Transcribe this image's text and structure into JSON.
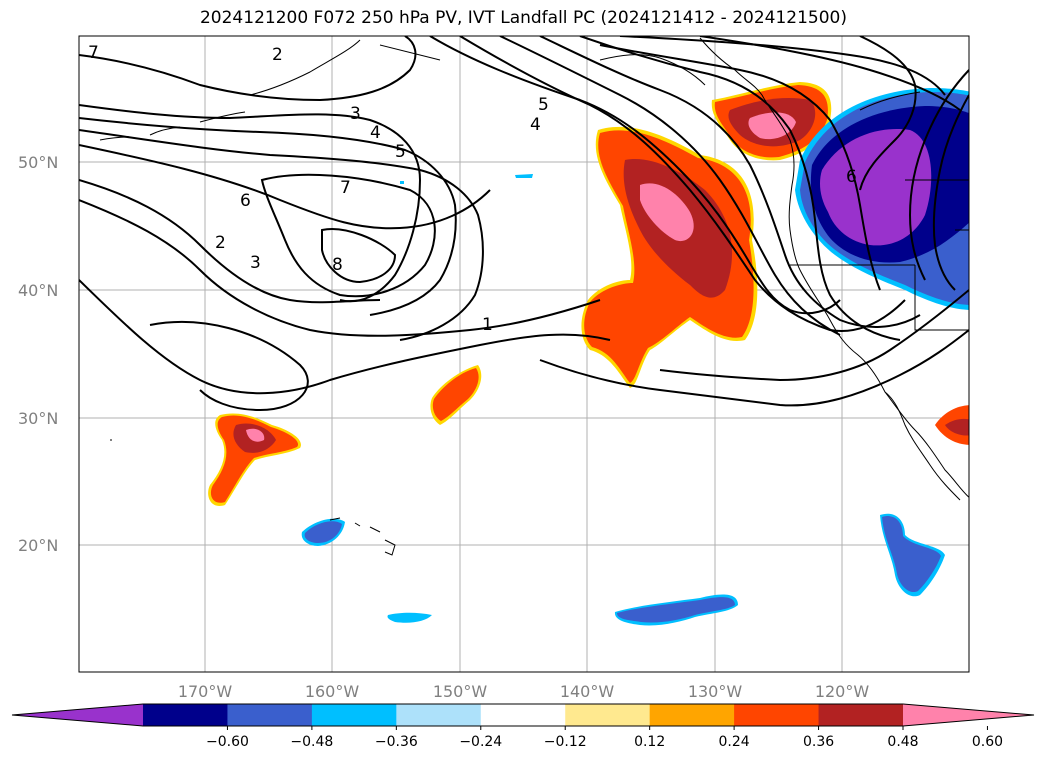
{
  "title": "2024121200 F072 250 hPa PV, IVT Landfall PC (2024121412 - 2024121500)",
  "lat_labels": [
    "50°N",
    "40°N",
    "30°N",
    "20°N"
  ],
  "lon_labels": [
    "170°W",
    "160°W",
    "150°W",
    "140°W",
    "130°W",
    "120°W"
  ],
  "contour_labels": [
    "7",
    "2",
    "3",
    "4",
    "5",
    "7",
    "6",
    "2",
    "3",
    "8",
    "5",
    "4",
    "1",
    "6"
  ],
  "colorbar": {
    "colors": [
      "#9932CC",
      "#00008B",
      "#3A5FCD",
      "#00BFFF",
      "#ADE1FA",
      "#FFFFFF",
      "#FFE98F",
      "#FFA500",
      "#FF4500",
      "#B22222",
      "#FF82AB"
    ],
    "tick_labels": [
      "−0.60",
      "−0.48",
      "−0.36",
      "−0.24",
      "−0.12",
      "0.12",
      "0.24",
      "0.36",
      "0.48",
      "0.60"
    ]
  },
  "grid": true
}
